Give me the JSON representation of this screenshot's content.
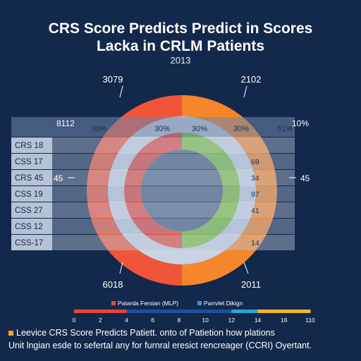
{
  "title_line1": "CRS Score Predicts Predict in Scores",
  "title_line2": "Lacka in CRLM Patients",
  "top_center_label": "2013",
  "chart_data": {
    "type": "pie",
    "corner_labels": {
      "top_left": "3079",
      "top_right": "2102",
      "bottom_left": "6018",
      "bottom_right": "2011",
      "mid_left": "8112",
      "mid_right": "10%"
    },
    "side_values": {
      "left": "45",
      "right": "45"
    },
    "percent_labels": [
      "30%",
      "30%",
      "30%",
      "30%",
      "51%"
    ],
    "rows": [
      {
        "label": "CRS 18",
        "value": ""
      },
      {
        "label": "CSS 17",
        "value": "69"
      },
      {
        "label": "CRS 45",
        "value": "34"
      },
      {
        "label": "CSS 19",
        "value": "97"
      },
      {
        "label": "CSS 27",
        "value": "41"
      },
      {
        "label": "CSS 12",
        "value": ""
      },
      {
        "label": "CSS-17",
        "value": "14"
      }
    ],
    "rings": [
      {
        "name": "outer",
        "colors": [
          "#f0553a",
          "#f5862a"
        ]
      },
      {
        "name": "inner",
        "colors": [
          "#e8453c",
          "#7cc242"
        ]
      }
    ],
    "legend": [
      {
        "label": "Patarda Fersian (MLP)",
        "color": "#e8453c"
      },
      {
        "label": "Parrvlet Dikign",
        "color": "#3d8fe0"
      }
    ],
    "scale": {
      "ticks": [
        "0",
        "2",
        "4",
        "6",
        "8",
        "10",
        "12",
        "14",
        "16",
        "110"
      ],
      "colors": [
        "#e8453c",
        "#e8453c",
        "#1f4e9e",
        "#1f4e9e",
        "#1f4e9e",
        "#1f4e9e",
        "#2aa5d6",
        "#f5b42a",
        "#f5b42a"
      ]
    }
  },
  "footer": {
    "line1": "Leevice CRS Score Predicts Patiett. onto of Patietion how plations",
    "line2": "Unit lngian esde to sefertal any for furnral eresict rencreager (CCRI) Oyertant."
  }
}
